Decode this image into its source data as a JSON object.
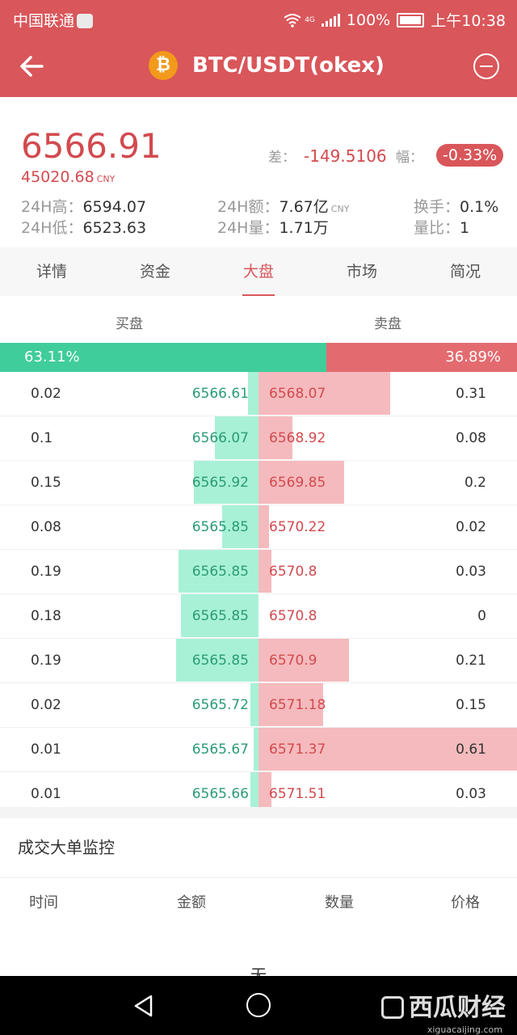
{
  "status_bar": {
    "carrier": "中国联通",
    "network": "4G",
    "battery": "100%",
    "time": "上午10:38"
  },
  "header": {
    "title": "BTC/USDT(okex)",
    "coin_symbol": "₿"
  },
  "ticker": {
    "price": "6566.91",
    "price_cny": "45020.68",
    "cny_unit": "CNY",
    "diff_label": "差：",
    "diff_value": "-149.5106",
    "change_label": "幅：",
    "change_value": "-0.33%",
    "high_label": "24H高：",
    "high": "6594.07",
    "low_label": "24H低：",
    "low": "6523.63",
    "turnover_label": "24H额：",
    "turnover": "7.67亿",
    "volume_label": "24H量：",
    "volume": "1.71万",
    "handover_label": "换手：",
    "handover": "0.1%",
    "ratio_label": "量比：",
    "ratio": "1"
  },
  "tabs": [
    {
      "label": "详情",
      "active": false
    },
    {
      "label": "资金",
      "active": false
    },
    {
      "label": "大盘",
      "active": true
    },
    {
      "label": "市场",
      "active": false
    },
    {
      "label": "简况",
      "active": false
    }
  ],
  "order_book": {
    "buy_label": "买盘",
    "sell_label": "卖盘",
    "buy_ratio_text": "63.11%",
    "sell_ratio_text": "36.89%",
    "buy_ratio": 0.6311,
    "rows": [
      {
        "buy_qty": "0.02",
        "buy_price": "6566.61",
        "sell_price": "6568.07",
        "sell_qty": "0.31",
        "buy_depth": 0.04,
        "sell_depth": 0.51
      },
      {
        "buy_qty": "0.1",
        "buy_price": "6566.07",
        "sell_price": "6568.92",
        "sell_qty": "0.08",
        "buy_depth": 0.17,
        "sell_depth": 0.13
      },
      {
        "buy_qty": "0.15",
        "buy_price": "6565.92",
        "sell_price": "6569.85",
        "sell_qty": "0.2",
        "buy_depth": 0.25,
        "sell_depth": 0.33
      },
      {
        "buy_qty": "0.08",
        "buy_price": "6565.85",
        "sell_price": "6570.22",
        "sell_qty": "0.02",
        "buy_depth": 0.14,
        "sell_depth": 0.04
      },
      {
        "buy_qty": "0.19",
        "buy_price": "6565.85",
        "sell_price": "6570.8",
        "sell_qty": "0.03",
        "buy_depth": 0.31,
        "sell_depth": 0.05
      },
      {
        "buy_qty": "0.18",
        "buy_price": "6565.85",
        "sell_price": "6570.8",
        "sell_qty": "0",
        "buy_depth": 0.3,
        "sell_depth": 0.0
      },
      {
        "buy_qty": "0.19",
        "buy_price": "6565.85",
        "sell_price": "6570.9",
        "sell_qty": "0.21",
        "buy_depth": 0.32,
        "sell_depth": 0.35
      },
      {
        "buy_qty": "0.02",
        "buy_price": "6565.72",
        "sell_price": "6571.18",
        "sell_qty": "0.15",
        "buy_depth": 0.03,
        "sell_depth": 0.25
      },
      {
        "buy_qty": "0.01",
        "buy_price": "6565.67",
        "sell_price": "6571.37",
        "sell_qty": "0.61",
        "buy_depth": 0.02,
        "sell_depth": 1.0
      },
      {
        "buy_qty": "0.01",
        "buy_price": "6565.66",
        "sell_price": "6571.51",
        "sell_qty": "0.03",
        "buy_depth": 0.03,
        "sell_depth": 0.05
      }
    ]
  },
  "monitor": {
    "title": "成交大单监控",
    "columns": [
      "时间",
      "金额",
      "数量",
      "价格"
    ],
    "empty_text": "无"
  },
  "watermark": {
    "text": "西瓜财经",
    "url": "xiguacaijing.com"
  },
  "colors": {
    "brand": "#d9565a",
    "buy": "#3fcd9b",
    "sell": "#e36b70"
  }
}
